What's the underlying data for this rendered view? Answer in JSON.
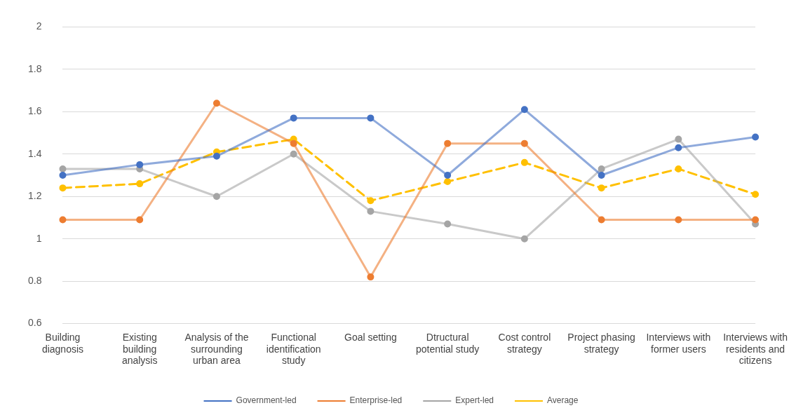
{
  "chart_data": {
    "type": "line",
    "categories": [
      "Building diagnosis",
      "Existing building analysis",
      "Analysis of the surrounding urban area",
      "Functional identification study",
      "Goal setting",
      "Dtructural potential study",
      "Cost control strategy",
      "Project phasing strategy",
      "Interviews with former users",
      "Interviews with  residents and citizens"
    ],
    "series": [
      {
        "name": "Government-led",
        "color": "#4472c4",
        "values": [
          1.3,
          1.35,
          1.39,
          1.57,
          1.57,
          1.3,
          1.61,
          1.3,
          1.43,
          1.48
        ]
      },
      {
        "name": "Enterprise-led",
        "color": "#ed7d31",
        "values": [
          1.09,
          1.09,
          1.64,
          1.45,
          0.82,
          1.45,
          1.45,
          1.09,
          1.09,
          1.09
        ]
      },
      {
        "name": "Expert-led",
        "color": "#a5a5a5",
        "values": [
          1.33,
          1.33,
          1.2,
          1.4,
          1.13,
          1.07,
          1.0,
          1.33,
          1.47,
          1.07
        ]
      },
      {
        "name": "Average",
        "color": "#ffc000",
        "line_style": "dashed",
        "values": [
          1.24,
          1.26,
          1.41,
          1.47,
          1.18,
          1.27,
          1.36,
          1.24,
          1.33,
          1.21
        ]
      }
    ],
    "ylim": [
      0.6,
      2
    ],
    "yticks": [
      0.6,
      0.8,
      1,
      1.2,
      1.4,
      1.6,
      1.8,
      2
    ],
    "grid": "y",
    "legend": "bottom",
    "marker": "circle",
    "line_style": "solid"
  }
}
